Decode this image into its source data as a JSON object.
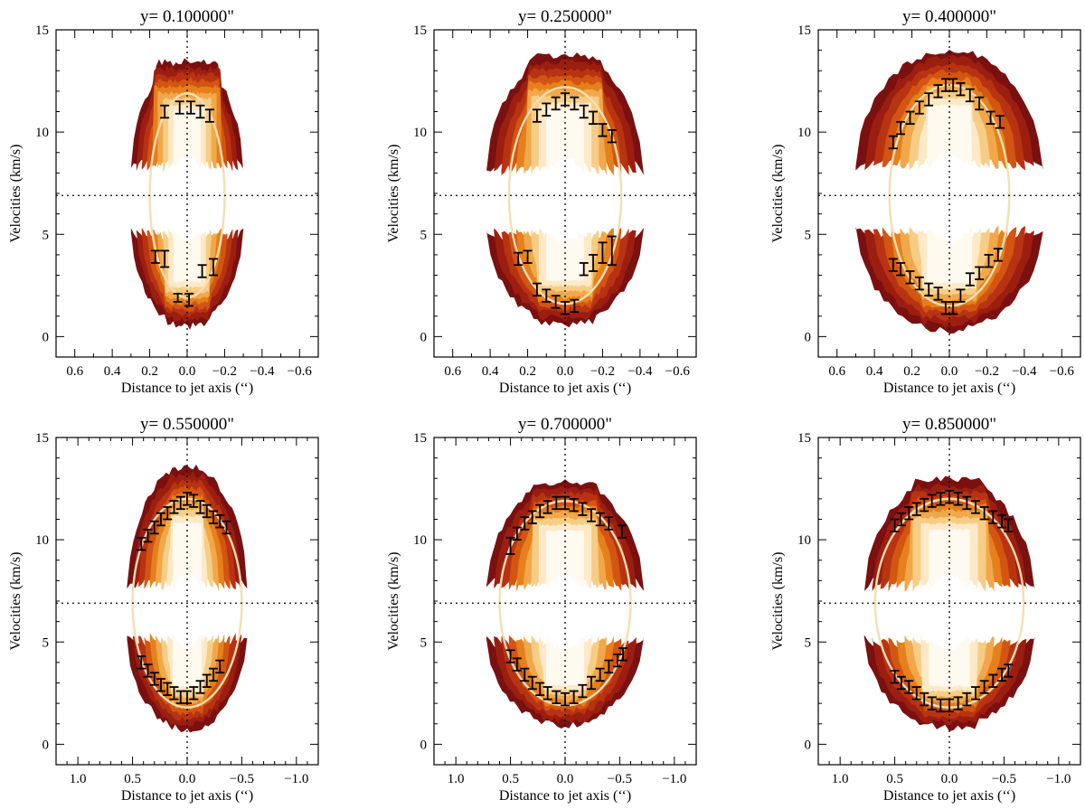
{
  "figure": {
    "colors": {
      "contour_levels": [
        "#7a1010",
        "#9c1e10",
        "#b83312",
        "#d35512",
        "#e5801c",
        "#f0a84a",
        "#f7cd86",
        "#fde9c8",
        "#fffaf0"
      ],
      "ellipse": "#f5deb3",
      "axes": "#000000"
    }
  },
  "chart_data": [
    {
      "type": "contour",
      "title": "y= 0.100000\"",
      "xlabel": "Distance to jet axis (‘‘)",
      "ylabel": "Velocities (km/s)",
      "xlim": [
        0.7,
        -0.7
      ],
      "ylim": [
        -1,
        15
      ],
      "xticks": [
        0.6,
        0.4,
        0.2,
        0.0,
        -0.2,
        -0.4,
        -0.6
      ],
      "xtick_labels": [
        "0.6",
        "0.4",
        "0.2",
        "0.0",
        "−0.2",
        "−0.4",
        "−0.6"
      ],
      "yticks": [
        0,
        5,
        10,
        15
      ],
      "ytick_labels": [
        "0",
        "5",
        "10",
        "15"
      ],
      "systemic_velocity": 6.9,
      "ellipse": {
        "center_x": 0.0,
        "center_v": 6.9,
        "semi_x": 0.2,
        "semi_v": 5.0
      },
      "lobes": {
        "half_width": 0.3,
        "upper_base": 8.2,
        "upper_top": 13.5,
        "upper_width_top": 0.18,
        "lower_top": 5.2,
        "lower_base": 0.5,
        "lower_width_base": 0.12,
        "peak_x": 0.0
      },
      "points": [
        {
          "x": 0.12,
          "v": 11.0,
          "err": 0.3
        },
        {
          "x": 0.04,
          "v": 11.2,
          "err": 0.3
        },
        {
          "x": -0.02,
          "v": 11.2,
          "err": 0.3
        },
        {
          "x": -0.07,
          "v": 11.0,
          "err": 0.3
        },
        {
          "x": -0.12,
          "v": 10.8,
          "err": 0.3
        },
        {
          "x": 0.17,
          "v": 3.9,
          "err": 0.3
        },
        {
          "x": 0.12,
          "v": 3.8,
          "err": 0.4
        },
        {
          "x": 0.05,
          "v": 1.9,
          "err": 0.2
        },
        {
          "x": -0.01,
          "v": 1.8,
          "err": 0.3
        },
        {
          "x": -0.08,
          "v": 3.2,
          "err": 0.3
        },
        {
          "x": -0.14,
          "v": 3.4,
          "err": 0.4
        }
      ]
    },
    {
      "type": "contour",
      "title": "y= 0.250000\"",
      "xlabel": "Distance to jet axis (‘‘)",
      "ylabel": "Velocities (km/s)",
      "xlim": [
        0.7,
        -0.7
      ],
      "ylim": [
        -1,
        15
      ],
      "xticks": [
        0.6,
        0.4,
        0.2,
        0.0,
        -0.2,
        -0.4,
        -0.6
      ],
      "xtick_labels": [
        "0.6",
        "0.4",
        "0.2",
        "0.0",
        "−0.2",
        "−0.4",
        "−0.6"
      ],
      "yticks": [
        0,
        5,
        10,
        15
      ],
      "ytick_labels": [
        "0",
        "5",
        "10",
        "15"
      ],
      "systemic_velocity": 6.9,
      "ellipse": {
        "center_x": 0.0,
        "center_v": 6.9,
        "semi_x": 0.3,
        "semi_v": 5.3
      },
      "lobes": {
        "half_width": 0.42,
        "upper_base": 8.0,
        "upper_top": 13.8,
        "upper_width_top": 0.2,
        "lower_top": 5.2,
        "lower_base": 0.6,
        "lower_width_base": 0.15,
        "peak_x": 0.0
      },
      "points": [
        {
          "x": 0.15,
          "v": 10.8,
          "err": 0.3
        },
        {
          "x": 0.1,
          "v": 11.1,
          "err": 0.3
        },
        {
          "x": 0.05,
          "v": 11.4,
          "err": 0.3
        },
        {
          "x": 0.0,
          "v": 11.6,
          "err": 0.3
        },
        {
          "x": -0.05,
          "v": 11.4,
          "err": 0.3
        },
        {
          "x": -0.1,
          "v": 11.0,
          "err": 0.3
        },
        {
          "x": -0.15,
          "v": 10.7,
          "err": 0.3
        },
        {
          "x": -0.2,
          "v": 10.1,
          "err": 0.3
        },
        {
          "x": -0.25,
          "v": 9.8,
          "err": 0.3
        },
        {
          "x": 0.25,
          "v": 3.8,
          "err": 0.3
        },
        {
          "x": 0.2,
          "v": 3.9,
          "err": 0.3
        },
        {
          "x": 0.15,
          "v": 2.3,
          "err": 0.3
        },
        {
          "x": 0.1,
          "v": 2.0,
          "err": 0.3
        },
        {
          "x": 0.05,
          "v": 1.7,
          "err": 0.3
        },
        {
          "x": 0.0,
          "v": 1.4,
          "err": 0.3
        },
        {
          "x": -0.05,
          "v": 1.5,
          "err": 0.3
        },
        {
          "x": -0.1,
          "v": 3.3,
          "err": 0.3
        },
        {
          "x": -0.15,
          "v": 3.6,
          "err": 0.4
        },
        {
          "x": -0.2,
          "v": 4.1,
          "err": 0.5
        },
        {
          "x": -0.25,
          "v": 4.2,
          "err": 0.7
        }
      ]
    },
    {
      "type": "contour",
      "title": "y= 0.400000\"",
      "xlabel": "Distance to jet axis (‘‘)",
      "ylabel": "Velocities (km/s)",
      "xlim": [
        0.7,
        -0.7
      ],
      "ylim": [
        -1,
        15
      ],
      "xticks": [
        0.6,
        0.4,
        0.2,
        0.0,
        -0.2,
        -0.4,
        -0.6
      ],
      "xtick_labels": [
        "0.6",
        "0.4",
        "0.2",
        "0.0",
        "−0.2",
        "−0.4",
        "−0.6"
      ],
      "yticks": [
        0,
        5,
        10,
        15
      ],
      "ytick_labels": [
        "0",
        "5",
        "10",
        "15"
      ],
      "systemic_velocity": 6.9,
      "ellipse": {
        "center_x": 0.0,
        "center_v": 6.9,
        "semi_x": 0.32,
        "semi_v": 5.4
      },
      "lobes": {
        "half_width": 0.5,
        "upper_base": 8.2,
        "upper_top": 14.0,
        "upper_width_top": 0.12,
        "lower_top": 5.3,
        "lower_base": 0.3,
        "lower_width_base": 0.15,
        "peak_x": 0.0
      },
      "points": [
        {
          "x": 0.3,
          "v": 9.5,
          "err": 0.3
        },
        {
          "x": 0.26,
          "v": 10.2,
          "err": 0.3
        },
        {
          "x": 0.21,
          "v": 10.7,
          "err": 0.3
        },
        {
          "x": 0.16,
          "v": 11.2,
          "err": 0.3
        },
        {
          "x": 0.11,
          "v": 11.6,
          "err": 0.3
        },
        {
          "x": 0.06,
          "v": 12.0,
          "err": 0.3
        },
        {
          "x": 0.02,
          "v": 12.3,
          "err": 0.3
        },
        {
          "x": -0.02,
          "v": 12.3,
          "err": 0.3
        },
        {
          "x": -0.06,
          "v": 12.1,
          "err": 0.3
        },
        {
          "x": -0.11,
          "v": 11.8,
          "err": 0.3
        },
        {
          "x": -0.16,
          "v": 11.4,
          "err": 0.3
        },
        {
          "x": -0.22,
          "v": 10.7,
          "err": 0.3
        },
        {
          "x": -0.27,
          "v": 10.5,
          "err": 0.3
        },
        {
          "x": 0.3,
          "v": 3.5,
          "err": 0.3
        },
        {
          "x": 0.26,
          "v": 3.3,
          "err": 0.3
        },
        {
          "x": 0.21,
          "v": 2.9,
          "err": 0.3
        },
        {
          "x": 0.16,
          "v": 2.6,
          "err": 0.3
        },
        {
          "x": 0.11,
          "v": 2.3,
          "err": 0.3
        },
        {
          "x": 0.06,
          "v": 2.1,
          "err": 0.3
        },
        {
          "x": 0.02,
          "v": 1.4,
          "err": 0.3
        },
        {
          "x": -0.02,
          "v": 1.4,
          "err": 0.3
        },
        {
          "x": -0.06,
          "v": 2.0,
          "err": 0.3
        },
        {
          "x": -0.11,
          "v": 2.8,
          "err": 0.3
        },
        {
          "x": -0.16,
          "v": 3.1,
          "err": 0.3
        },
        {
          "x": -0.21,
          "v": 3.7,
          "err": 0.3
        },
        {
          "x": -0.26,
          "v": 4.0,
          "err": 0.3
        }
      ]
    },
    {
      "type": "contour",
      "title": "y= 0.550000\"",
      "xlabel": "Distance to jet axis (‘‘)",
      "ylabel": "Velocities (km/s)",
      "xlim": [
        1.2,
        -1.2
      ],
      "ylim": [
        -1,
        15
      ],
      "xticks": [
        1.0,
        0.5,
        0.0,
        -0.5,
        -1.0
      ],
      "xtick_labels": [
        "1.0",
        "0.5",
        "0.0",
        "−0.5",
        "−1.0"
      ],
      "yticks": [
        0,
        5,
        10,
        15
      ],
      "ytick_labels": [
        "0",
        "5",
        "10",
        "15"
      ],
      "systemic_velocity": 6.9,
      "ellipse": {
        "center_x": 0.0,
        "center_v": 6.9,
        "semi_x": 0.5,
        "semi_v": 5.1
      },
      "lobes": {
        "half_width": 0.55,
        "upper_base": 7.6,
        "upper_top": 13.6,
        "upper_width_top": 0.15,
        "lower_top": 5.3,
        "lower_base": 0.7,
        "lower_width_base": 0.15,
        "peak_x": 0.0
      },
      "points": [
        {
          "x": 0.42,
          "v": 9.8,
          "err": 0.3
        },
        {
          "x": 0.36,
          "v": 10.2,
          "err": 0.3
        },
        {
          "x": 0.3,
          "v": 10.6,
          "err": 0.3
        },
        {
          "x": 0.24,
          "v": 11.0,
          "err": 0.3
        },
        {
          "x": 0.18,
          "v": 11.3,
          "err": 0.3
        },
        {
          "x": 0.12,
          "v": 11.6,
          "err": 0.3
        },
        {
          "x": 0.06,
          "v": 11.8,
          "err": 0.3
        },
        {
          "x": 0.0,
          "v": 12.0,
          "err": 0.3
        },
        {
          "x": -0.06,
          "v": 11.9,
          "err": 0.3
        },
        {
          "x": -0.12,
          "v": 11.6,
          "err": 0.3
        },
        {
          "x": -0.18,
          "v": 11.4,
          "err": 0.3
        },
        {
          "x": -0.24,
          "v": 11.1,
          "err": 0.3
        },
        {
          "x": -0.3,
          "v": 10.9,
          "err": 0.3
        },
        {
          "x": -0.36,
          "v": 10.6,
          "err": 0.3
        },
        {
          "x": 0.42,
          "v": 4.0,
          "err": 0.3
        },
        {
          "x": 0.36,
          "v": 3.6,
          "err": 0.3
        },
        {
          "x": 0.3,
          "v": 3.2,
          "err": 0.3
        },
        {
          "x": 0.24,
          "v": 2.9,
          "err": 0.3
        },
        {
          "x": 0.18,
          "v": 2.7,
          "err": 0.3
        },
        {
          "x": 0.12,
          "v": 2.5,
          "err": 0.3
        },
        {
          "x": 0.06,
          "v": 2.3,
          "err": 0.3
        },
        {
          "x": 0.0,
          "v": 2.3,
          "err": 0.3
        },
        {
          "x": -0.06,
          "v": 2.5,
          "err": 0.3
        },
        {
          "x": -0.12,
          "v": 2.8,
          "err": 0.3
        },
        {
          "x": -0.18,
          "v": 3.1,
          "err": 0.3
        },
        {
          "x": -0.24,
          "v": 3.4,
          "err": 0.3
        },
        {
          "x": -0.3,
          "v": 3.8,
          "err": 0.3
        }
      ]
    },
    {
      "type": "contour",
      "title": "y= 0.700000\"",
      "xlabel": "Distance to jet axis (‘‘)",
      "ylabel": "Velocities (km/s)",
      "xlim": [
        1.2,
        -1.2
      ],
      "ylim": [
        -1,
        15
      ],
      "xticks": [
        1.0,
        0.5,
        0.0,
        -0.5,
        -1.0
      ],
      "xtick_labels": [
        "1.0",
        "0.5",
        "0.0",
        "−0.5",
        "−1.0"
      ],
      "yticks": [
        0,
        5,
        10,
        15
      ],
      "ytick_labels": [
        "0",
        "5",
        "10",
        "15"
      ],
      "systemic_velocity": 6.9,
      "ellipse": {
        "center_x": 0.0,
        "center_v": 6.9,
        "semi_x": 0.6,
        "semi_v": 5.0
      },
      "lobes": {
        "half_width": 0.72,
        "upper_base": 7.6,
        "upper_top": 12.9,
        "upper_width_top": 0.3,
        "lower_top": 5.2,
        "lower_base": 0.9,
        "lower_width_base": 0.2,
        "peak_x": 0.0
      },
      "points": [
        {
          "x": 0.5,
          "v": 9.7,
          "err": 0.4
        },
        {
          "x": 0.44,
          "v": 10.3,
          "err": 0.3
        },
        {
          "x": 0.37,
          "v": 10.8,
          "err": 0.3
        },
        {
          "x": 0.3,
          "v": 11.1,
          "err": 0.3
        },
        {
          "x": 0.23,
          "v": 11.4,
          "err": 0.3
        },
        {
          "x": 0.16,
          "v": 11.6,
          "err": 0.3
        },
        {
          "x": 0.08,
          "v": 11.8,
          "err": 0.3
        },
        {
          "x": 0.0,
          "v": 11.8,
          "err": 0.3
        },
        {
          "x": -0.08,
          "v": 11.7,
          "err": 0.3
        },
        {
          "x": -0.16,
          "v": 11.5,
          "err": 0.3
        },
        {
          "x": -0.24,
          "v": 11.2,
          "err": 0.3
        },
        {
          "x": -0.32,
          "v": 11.0,
          "err": 0.3
        },
        {
          "x": -0.4,
          "v": 10.8,
          "err": 0.3
        },
        {
          "x": -0.52,
          "v": 10.4,
          "err": 0.3
        },
        {
          "x": 0.5,
          "v": 4.3,
          "err": 0.3
        },
        {
          "x": 0.44,
          "v": 3.9,
          "err": 0.3
        },
        {
          "x": 0.37,
          "v": 3.4,
          "err": 0.3
        },
        {
          "x": 0.3,
          "v": 3.0,
          "err": 0.3
        },
        {
          "x": 0.23,
          "v": 2.7,
          "err": 0.3
        },
        {
          "x": 0.16,
          "v": 2.5,
          "err": 0.3
        },
        {
          "x": 0.08,
          "v": 2.3,
          "err": 0.3
        },
        {
          "x": 0.0,
          "v": 2.2,
          "err": 0.3
        },
        {
          "x": -0.08,
          "v": 2.3,
          "err": 0.3
        },
        {
          "x": -0.16,
          "v": 2.6,
          "err": 0.3
        },
        {
          "x": -0.24,
          "v": 3.0,
          "err": 0.3
        },
        {
          "x": -0.32,
          "v": 3.4,
          "err": 0.3
        },
        {
          "x": -0.4,
          "v": 3.8,
          "err": 0.3
        },
        {
          "x": -0.48,
          "v": 4.1,
          "err": 0.3
        },
        {
          "x": -0.53,
          "v": 4.4,
          "err": 0.3
        }
      ]
    },
    {
      "type": "contour",
      "title": "y= 0.850000\"",
      "xlabel": "Distance to jet axis (‘‘)",
      "ylabel": "Velocities (km/s)",
      "xlim": [
        1.2,
        -1.2
      ],
      "ylim": [
        -1,
        15
      ],
      "xticks": [
        1.0,
        0.5,
        0.0,
        -0.5,
        -1.0
      ],
      "xtick_labels": [
        "1.0",
        "0.5",
        "0.0",
        "−0.5",
        "−1.0"
      ],
      "yticks": [
        0,
        5,
        10,
        15
      ],
      "ytick_labels": [
        "0",
        "5",
        "10",
        "15"
      ],
      "systemic_velocity": 6.9,
      "ellipse": {
        "center_x": 0.0,
        "center_v": 6.9,
        "semi_x": 0.68,
        "semi_v": 5.1
      },
      "lobes": {
        "half_width": 0.78,
        "upper_base": 7.6,
        "upper_top": 13.0,
        "upper_width_top": 0.35,
        "lower_top": 5.2,
        "lower_base": 0.8,
        "lower_width_base": 0.25,
        "peak_x": 0.0
      },
      "points": [
        {
          "x": 0.5,
          "v": 10.7,
          "err": 0.3
        },
        {
          "x": 0.44,
          "v": 11.0,
          "err": 0.3
        },
        {
          "x": 0.37,
          "v": 11.3,
          "err": 0.3
        },
        {
          "x": 0.3,
          "v": 11.5,
          "err": 0.3
        },
        {
          "x": 0.23,
          "v": 11.7,
          "err": 0.3
        },
        {
          "x": 0.16,
          "v": 11.9,
          "err": 0.3
        },
        {
          "x": 0.08,
          "v": 12.0,
          "err": 0.3
        },
        {
          "x": 0.0,
          "v": 12.1,
          "err": 0.3
        },
        {
          "x": -0.08,
          "v": 12.0,
          "err": 0.3
        },
        {
          "x": -0.16,
          "v": 11.8,
          "err": 0.3
        },
        {
          "x": -0.24,
          "v": 11.6,
          "err": 0.3
        },
        {
          "x": -0.32,
          "v": 11.3,
          "err": 0.3
        },
        {
          "x": -0.4,
          "v": 11.1,
          "err": 0.3
        },
        {
          "x": -0.48,
          "v": 10.9,
          "err": 0.3
        },
        {
          "x": -0.54,
          "v": 10.7,
          "err": 0.3
        },
        {
          "x": 0.5,
          "v": 3.3,
          "err": 0.3
        },
        {
          "x": 0.44,
          "v": 3.0,
          "err": 0.3
        },
        {
          "x": 0.37,
          "v": 2.8,
          "err": 0.3
        },
        {
          "x": 0.3,
          "v": 2.5,
          "err": 0.3
        },
        {
          "x": 0.23,
          "v": 2.2,
          "err": 0.3
        },
        {
          "x": 0.16,
          "v": 2.0,
          "err": 0.3
        },
        {
          "x": 0.08,
          "v": 1.9,
          "err": 0.3
        },
        {
          "x": 0.0,
          "v": 1.9,
          "err": 0.3
        },
        {
          "x": -0.08,
          "v": 2.0,
          "err": 0.3
        },
        {
          "x": -0.16,
          "v": 2.2,
          "err": 0.3
        },
        {
          "x": -0.24,
          "v": 2.5,
          "err": 0.3
        },
        {
          "x": -0.32,
          "v": 2.8,
          "err": 0.3
        },
        {
          "x": -0.4,
          "v": 3.1,
          "err": 0.3
        },
        {
          "x": -0.48,
          "v": 3.4,
          "err": 0.3
        },
        {
          "x": -0.54,
          "v": 3.6,
          "err": 0.3
        }
      ]
    }
  ]
}
